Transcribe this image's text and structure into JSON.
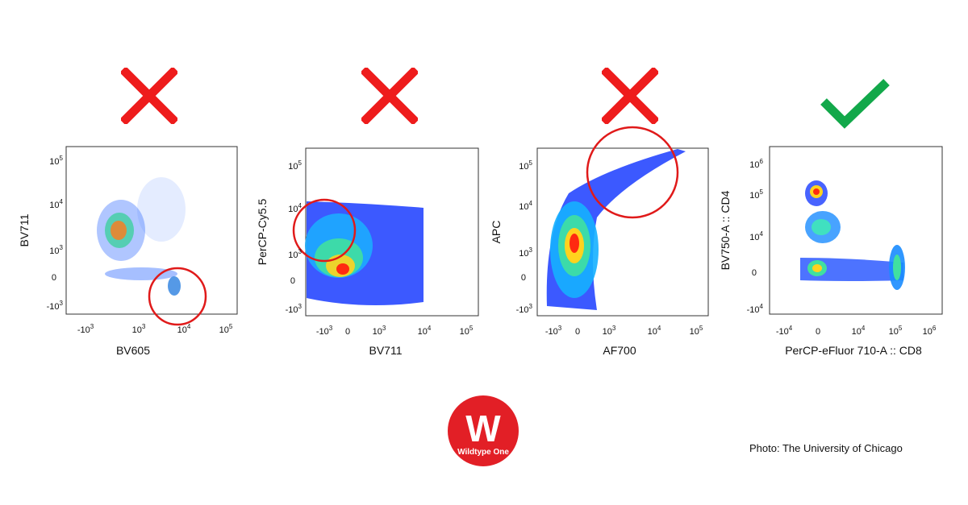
{
  "marks": [
    {
      "type": "cross",
      "color": "#ee1c1c"
    },
    {
      "type": "cross",
      "color": "#ee1c1c"
    },
    {
      "type": "cross",
      "color": "#ee1c1c"
    },
    {
      "type": "check",
      "color": "#12a84a"
    }
  ],
  "chart_data": [
    {
      "type": "scatter",
      "xlabel": "BV605",
      "ylabel": "BV711",
      "x_ticks": [
        "-10^3",
        "10^3",
        "10^4",
        "10^5"
      ],
      "y_ticks": [
        "10^5",
        "10^4",
        "10^3",
        "0",
        "-10^3"
      ],
      "x_scale": "biexponential",
      "y_scale": "biexponential",
      "highlight": "circle around population near x≈10^4, y≈-10^3"
    },
    {
      "type": "scatter",
      "xlabel": "BV711",
      "ylabel": "PerCP-Cy5.5",
      "x_ticks": [
        "-10^3",
        "0",
        "10^3",
        "10^4",
        "10^5"
      ],
      "y_ticks": [
        "10^5",
        "10^4",
        "10^3",
        "0",
        "-10^3"
      ],
      "x_scale": "biexponential",
      "y_scale": "biexponential",
      "highlight": "circle around cloud near x≈-10^3, y≈10^3"
    },
    {
      "type": "scatter",
      "xlabel": "AF700",
      "ylabel": "APC",
      "x_ticks": [
        "-10^3",
        "0",
        "10^3",
        "10^4",
        "10^5"
      ],
      "y_ticks": [
        "10^5",
        "10^4",
        "10^3",
        "0",
        "-10^3"
      ],
      "x_scale": "biexponential",
      "y_scale": "biexponential",
      "highlight": "circle around diagonal streak near x≈10^4, y≈10^5"
    },
    {
      "type": "scatter",
      "xlabel": "PerCP-eFluor 710-A :: CD8",
      "ylabel": "BV750-A :: CD4",
      "x_ticks": [
        "-10^4",
        "0",
        "10^4",
        "10^5",
        "10^6"
      ],
      "y_ticks": [
        "10^6",
        "10^5",
        "10^4",
        "0",
        "-10^4"
      ],
      "x_scale": "biexponential",
      "y_scale": "biexponential",
      "highlight": ""
    }
  ],
  "logo": {
    "letter": "W",
    "name": "Wildtype One",
    "color": "#e21f26"
  },
  "credit": "Photo: The University of Chicago"
}
